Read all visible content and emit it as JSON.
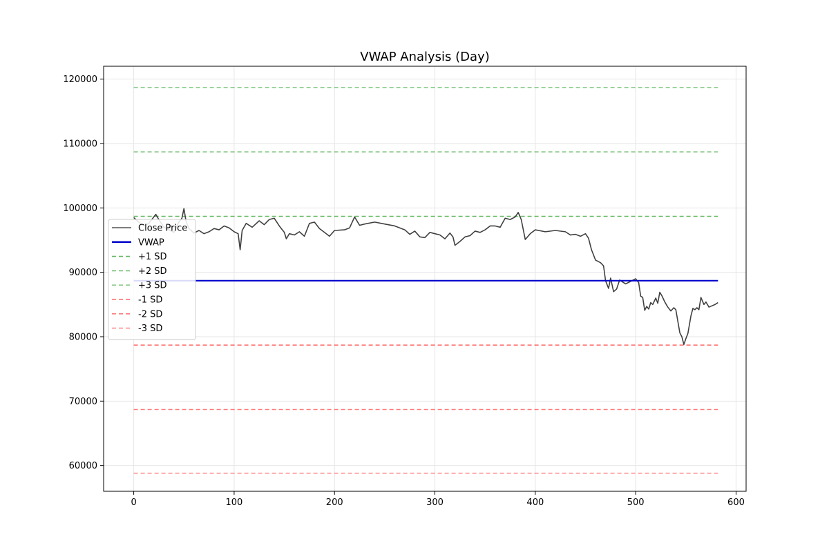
{
  "chart_data": {
    "type": "line",
    "title": "VWAP Analysis (Day)",
    "xlabel": "",
    "ylabel": "",
    "xlim": [
      -30,
      610
    ],
    "ylim": [
      56000,
      122000
    ],
    "x_ticks": [
      0,
      100,
      200,
      300,
      400,
      500,
      600
    ],
    "y_ticks": [
      60000,
      70000,
      80000,
      90000,
      100000,
      110000,
      120000
    ],
    "grid": true,
    "legend_position": "center-left",
    "colors": {
      "close": "#404040",
      "vwap": "#0000cc",
      "sd_plus": "#2ca02c",
      "sd_minus": "#ff3333"
    },
    "series": [
      {
        "name": "Close Price",
        "style": "solid",
        "color": "#404040",
        "points": [
          [
            0,
            98500
          ],
          [
            5,
            97800
          ],
          [
            10,
            97200
          ],
          [
            15,
            97600
          ],
          [
            20,
            98600
          ],
          [
            22,
            99000
          ],
          [
            25,
            98200
          ],
          [
            30,
            97000
          ],
          [
            35,
            96600
          ],
          [
            40,
            96200
          ],
          [
            45,
            97800
          ],
          [
            48,
            98400
          ],
          [
            50,
            99900
          ],
          [
            52,
            98000
          ],
          [
            55,
            96800
          ],
          [
            60,
            96100
          ],
          [
            65,
            96500
          ],
          [
            70,
            96000
          ],
          [
            75,
            96300
          ],
          [
            80,
            96800
          ],
          [
            85,
            96600
          ],
          [
            90,
            97200
          ],
          [
            95,
            96900
          ],
          [
            100,
            96300
          ],
          [
            104,
            96000
          ],
          [
            106,
            93500
          ],
          [
            108,
            96500
          ],
          [
            112,
            97600
          ],
          [
            118,
            97000
          ],
          [
            125,
            98000
          ],
          [
            130,
            97400
          ],
          [
            135,
            98200
          ],
          [
            140,
            98400
          ],
          [
            145,
            97200
          ],
          [
            150,
            96200
          ],
          [
            152,
            95200
          ],
          [
            155,
            96000
          ],
          [
            160,
            95800
          ],
          [
            165,
            96300
          ],
          [
            170,
            95600
          ],
          [
            175,
            97600
          ],
          [
            180,
            97800
          ],
          [
            185,
            96800
          ],
          [
            190,
            96200
          ],
          [
            195,
            95600
          ],
          [
            200,
            96500
          ],
          [
            210,
            96600
          ],
          [
            215,
            96900
          ],
          [
            220,
            98600
          ],
          [
            225,
            97300
          ],
          [
            230,
            97500
          ],
          [
            240,
            97800
          ],
          [
            250,
            97500
          ],
          [
            260,
            97200
          ],
          [
            270,
            96600
          ],
          [
            275,
            95900
          ],
          [
            280,
            96400
          ],
          [
            285,
            95500
          ],
          [
            290,
            95400
          ],
          [
            295,
            96200
          ],
          [
            300,
            96000
          ],
          [
            305,
            95800
          ],
          [
            310,
            95200
          ],
          [
            315,
            96100
          ],
          [
            318,
            95500
          ],
          [
            320,
            94200
          ],
          [
            325,
            94800
          ],
          [
            330,
            95500
          ],
          [
            335,
            95700
          ],
          [
            340,
            96400
          ],
          [
            345,
            96200
          ],
          [
            350,
            96600
          ],
          [
            355,
            97200
          ],
          [
            360,
            97200
          ],
          [
            365,
            97000
          ],
          [
            370,
            98400
          ],
          [
            375,
            98200
          ],
          [
            380,
            98600
          ],
          [
            383,
            99300
          ],
          [
            386,
            98200
          ],
          [
            390,
            95100
          ],
          [
            395,
            96000
          ],
          [
            400,
            96600
          ],
          [
            410,
            96300
          ],
          [
            420,
            96500
          ],
          [
            430,
            96300
          ],
          [
            435,
            95800
          ],
          [
            440,
            95900
          ],
          [
            445,
            95600
          ],
          [
            450,
            96000
          ],
          [
            453,
            95300
          ],
          [
            456,
            93500
          ],
          [
            460,
            91900
          ],
          [
            465,
            91500
          ],
          [
            468,
            91000
          ],
          [
            470,
            88700
          ],
          [
            473,
            87500
          ],
          [
            475,
            89100
          ],
          [
            478,
            87000
          ],
          [
            481,
            87400
          ],
          [
            484,
            88800
          ],
          [
            487,
            88500
          ],
          [
            490,
            88200
          ],
          [
            495,
            88600
          ],
          [
            500,
            89000
          ],
          [
            503,
            88400
          ],
          [
            505,
            86300
          ],
          [
            507,
            86100
          ],
          [
            509,
            84100
          ],
          [
            511,
            84700
          ],
          [
            513,
            84300
          ],
          [
            515,
            85300
          ],
          [
            517,
            85000
          ],
          [
            520,
            86000
          ],
          [
            522,
            85200
          ],
          [
            524,
            86900
          ],
          [
            526,
            86400
          ],
          [
            529,
            85400
          ],
          [
            532,
            84600
          ],
          [
            535,
            84000
          ],
          [
            538,
            84500
          ],
          [
            540,
            84200
          ],
          [
            542,
            82400
          ],
          [
            544,
            80600
          ],
          [
            546,
            80000
          ],
          [
            548,
            78800
          ],
          [
            550,
            79700
          ],
          [
            552,
            80500
          ],
          [
            555,
            83200
          ],
          [
            557,
            84400
          ],
          [
            559,
            84200
          ],
          [
            561,
            84500
          ],
          [
            563,
            84200
          ],
          [
            565,
            86100
          ],
          [
            568,
            85000
          ],
          [
            570,
            85400
          ],
          [
            573,
            84600
          ],
          [
            576,
            84800
          ],
          [
            579,
            85000
          ],
          [
            582,
            85300
          ]
        ]
      },
      {
        "name": "VWAP",
        "style": "solid",
        "color": "#0000cc",
        "value": 88700
      },
      {
        "name": "+1 SD",
        "style": "dashed",
        "color": "#2ca02c",
        "value": 98700
      },
      {
        "name": "+2 SD",
        "style": "dashed",
        "color": "#2ca02c",
        "value": 108700
      },
      {
        "name": "+3 SD",
        "style": "dashed",
        "color": "#2ca02c",
        "value": 118700
      },
      {
        "name": "-1 SD",
        "style": "dashed",
        "color": "#ff3333",
        "value": 78700
      },
      {
        "name": "-2 SD",
        "style": "dashed",
        "color": "#ff3333",
        "value": 68700
      },
      {
        "name": "-3 SD",
        "style": "dashed",
        "color": "#ff3333",
        "value": 58800
      }
    ],
    "band_x_range": [
      0,
      582
    ]
  }
}
